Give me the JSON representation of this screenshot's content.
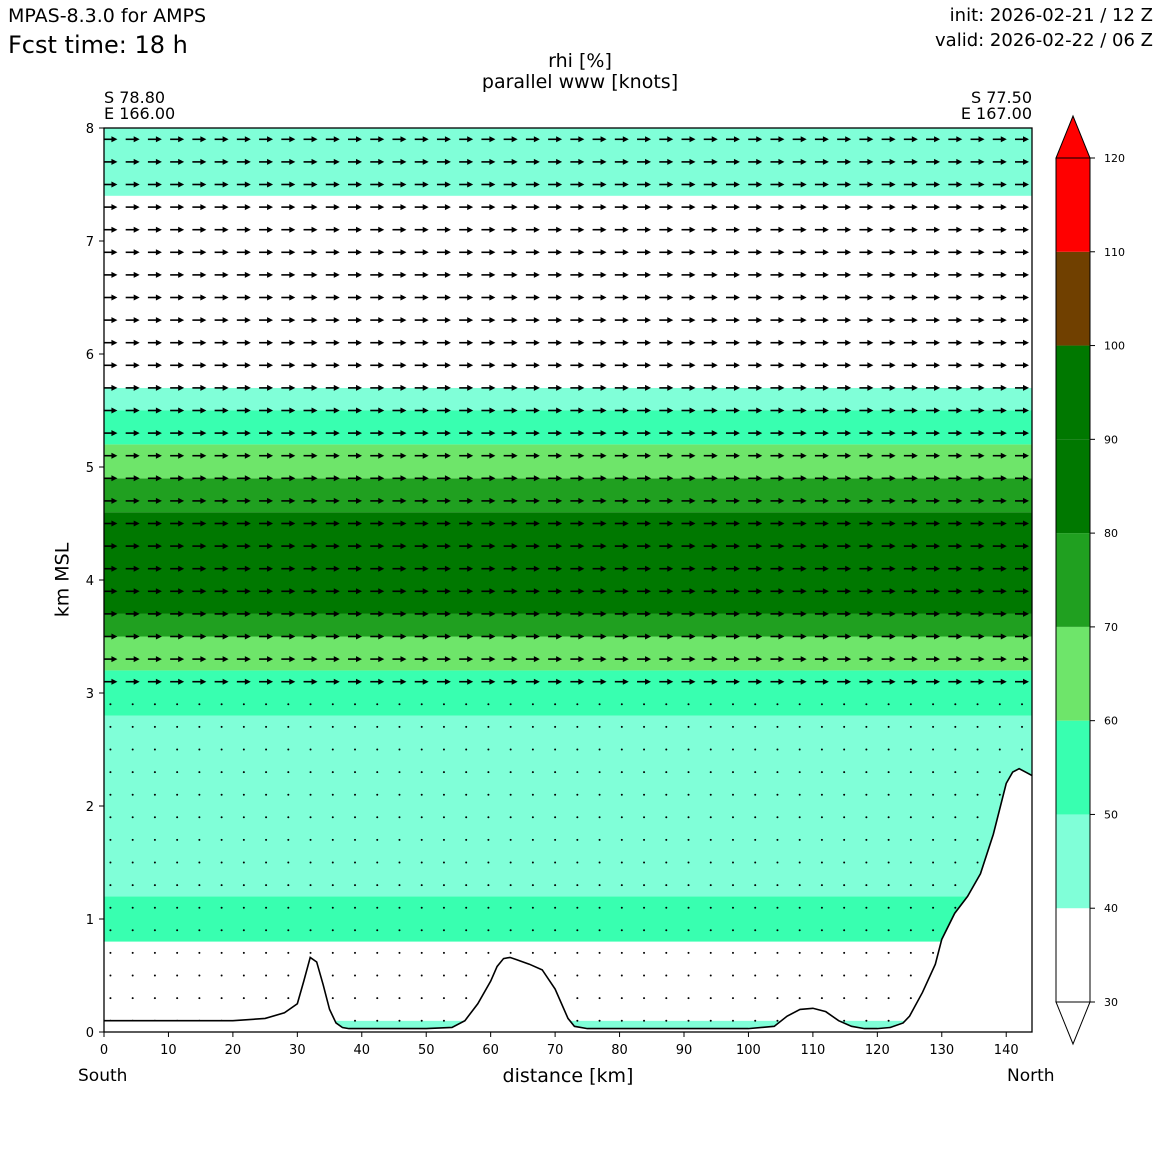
{
  "header": {
    "model": "MPAS-8.3.0 for AMPS",
    "fcst_time": "Fcst time:   18 h",
    "init": "init: 2026-02-21 / 12 Z",
    "valid": "valid: 2026-02-22 / 06 Z"
  },
  "section": {
    "start_lat": "S 78.80",
    "start_lon": "E 166.00",
    "end_lat": "S 77.50",
    "end_lon": "E 167.00",
    "start_dir": "South",
    "end_dir": "North"
  },
  "chart_data": {
    "type": "heatmap",
    "title": "rhi [%]",
    "subtitle": "parallel www [knots]",
    "xlabel": "distance [km]",
    "ylabel": "km MSL",
    "xlim": [
      0,
      144
    ],
    "ylim": [
      0,
      8
    ],
    "x_ticks": [
      0,
      10,
      20,
      30,
      40,
      50,
      60,
      70,
      80,
      90,
      100,
      110,
      120,
      130,
      140
    ],
    "y_ticks": [
      0,
      1,
      2,
      3,
      4,
      5,
      6,
      7,
      8
    ],
    "colorbar": {
      "levels": [
        30,
        40,
        50,
        60,
        70,
        80,
        90,
        100,
        110,
        120
      ],
      "colors": [
        "#ffffff",
        "#80ffd8",
        "#38ffb0",
        "#6ee56a",
        "#20a020",
        "#007800",
        "#007800",
        "#704000",
        "#ff0000"
      ],
      "extend": "both"
    },
    "bands": [
      {
        "range": "0-0.1",
        "rhi": 45
      },
      {
        "range": "0.1-0.8",
        "rhi": 35
      },
      {
        "range": "0.8-1.2",
        "rhi": 50
      },
      {
        "range": "1.2-2.8",
        "rhi": 45
      },
      {
        "range": "2.8-3.2",
        "rhi": 55
      },
      {
        "range": "3.2-3.5",
        "rhi": 65
      },
      {
        "range": "3.5-3.7",
        "rhi": 75
      },
      {
        "range": "3.7-4.6",
        "rhi": 85
      },
      {
        "range": "4.6-4.9",
        "rhi": 75
      },
      {
        "range": "4.9-5.2",
        "rhi": 65
      },
      {
        "range": "5.2-5.5",
        "rhi": 55
      },
      {
        "range": "5.5-5.7",
        "rhi": 45
      },
      {
        "range": "5.7-7.4",
        "rhi": 35
      },
      {
        "range": "7.4-8.0",
        "rhi": 45
      }
    ],
    "terrain": {
      "x": [
        0,
        10,
        20,
        25,
        28,
        30,
        31,
        32,
        33,
        34,
        35,
        36,
        37,
        38,
        40,
        45,
        50,
        54,
        56,
        58,
        60,
        61,
        62,
        63,
        64,
        66,
        68,
        70,
        72,
        73,
        75,
        80,
        90,
        100,
        104,
        106,
        108,
        110,
        112,
        114,
        116,
        118,
        120,
        122,
        124,
        125,
        127,
        129,
        130,
        132,
        134,
        136,
        138,
        140,
        141,
        142,
        143,
        144
      ],
      "y": [
        0.1,
        0.1,
        0.1,
        0.12,
        0.17,
        0.25,
        0.45,
        0.66,
        0.62,
        0.42,
        0.2,
        0.08,
        0.04,
        0.03,
        0.03,
        0.03,
        0.03,
        0.04,
        0.1,
        0.25,
        0.45,
        0.58,
        0.65,
        0.66,
        0.64,
        0.6,
        0.55,
        0.38,
        0.12,
        0.05,
        0.03,
        0.03,
        0.03,
        0.03,
        0.05,
        0.14,
        0.2,
        0.21,
        0.18,
        0.1,
        0.05,
        0.03,
        0.03,
        0.04,
        0.08,
        0.14,
        0.35,
        0.6,
        0.82,
        1.05,
        1.2,
        1.4,
        1.75,
        2.2,
        2.3,
        2.33,
        2.3,
        2.27
      ]
    },
    "wind_arrows": {
      "lower_speed_factor": 0.2,
      "upper_speed_factor": 1.0,
      "transition_height_km": 3.0,
      "direction": "south-to-north along section"
    }
  }
}
